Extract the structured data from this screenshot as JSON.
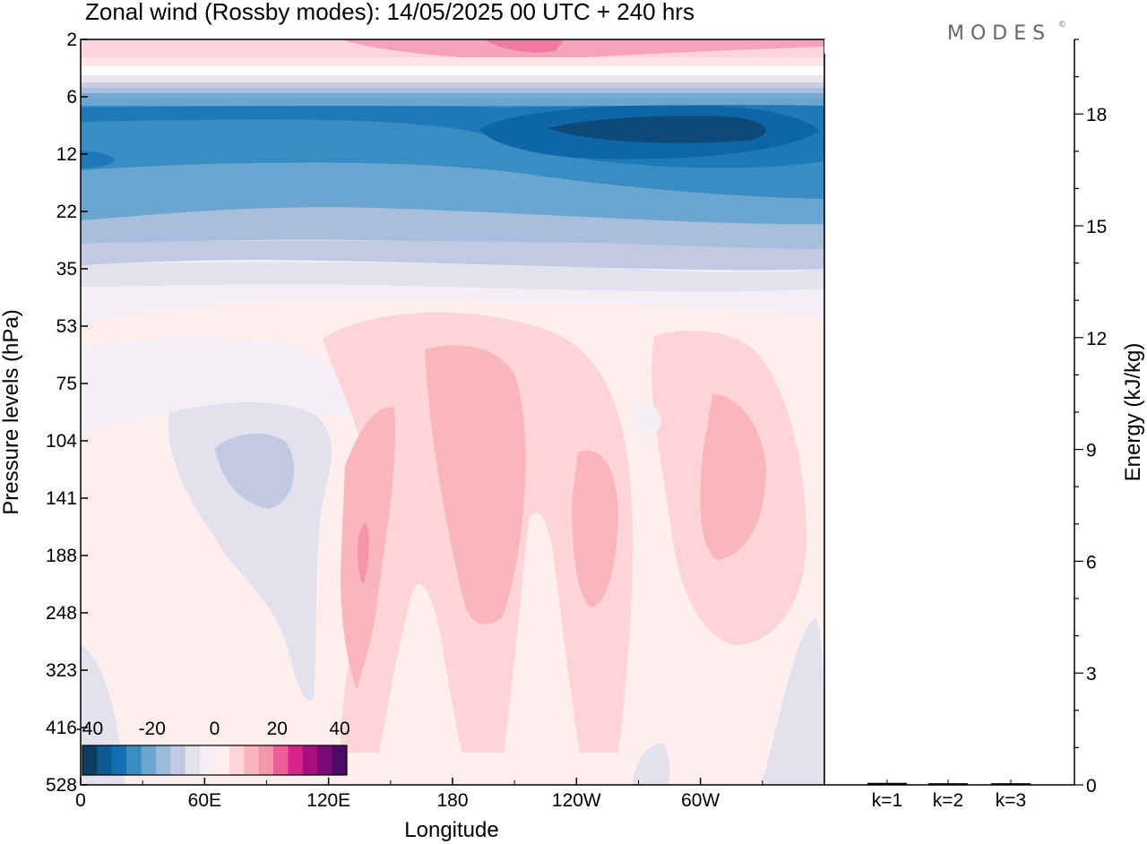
{
  "title": "Zonal wind (Rossby modes):  14/05/2025  00 UTC  + 240 hrs",
  "logo": {
    "text": "MODES",
    "mark": "©"
  },
  "chart_data": [
    {
      "type": "heatmap",
      "title": "Zonal wind (Rossby modes):  14/05/2025  00 UTC  + 240 hrs",
      "xlabel": "Longitude",
      "ylabel": "Pressure levels (hPa)",
      "x_ticks": [
        "0",
        "60E",
        "120E",
        "180",
        "120W",
        "60W"
      ],
      "x_range": [
        0,
        360
      ],
      "y_ticks": [
        "2",
        "6",
        "12",
        "22",
        "35",
        "53",
        "75",
        "104",
        "141",
        "188",
        "248",
        "323",
        "416",
        "528"
      ],
      "y_scale": "log (pressure)",
      "y_direction": "pressure decreasing upward",
      "colorbar": {
        "labels": [
          "-40",
          "-20",
          "0",
          "20",
          "40"
        ],
        "range": [
          -40,
          40
        ],
        "step": 5,
        "colors": [
          "#0d3c61",
          "#0e5a92",
          "#1070b2",
          "#3a8dc3",
          "#6aa6cf",
          "#9bbbdb",
          "#c2c9e2",
          "#e2e1ee",
          "#f3eff5",
          "#ffeeee",
          "#fdd5d6",
          "#fab6bd",
          "#f595ab",
          "#ee5e9a",
          "#d6238a",
          "#a80e7e",
          "#7a0a76",
          "#4f0a63"
        ]
      },
      "field_features": [
        {
          "description": "strong easterly core",
          "lon_range": [
            190,
            320
          ],
          "level_hPa": 9,
          "value": -40
        },
        {
          "description": "easterly band",
          "lon_range": [
            0,
            360
          ],
          "level_range_hPa": [
            6,
            30
          ],
          "value_range": [
            -35,
            -15
          ]
        },
        {
          "description": "weak westerly near top",
          "lon_range": [
            0,
            360
          ],
          "level_range_hPa": [
            2,
            4
          ],
          "value_range": [
            5,
            15
          ]
        },
        {
          "description": "westerly tongue",
          "lon_range": [
            130,
            150
          ],
          "level_range_hPa": [
            100,
            320
          ],
          "value": 10
        },
        {
          "description": "westerly maximum",
          "lon_range": [
            165,
            205
          ],
          "level_range_hPa": [
            70,
            250
          ],
          "value": 15
        },
        {
          "description": "westerly maximum",
          "lon_range": [
            225,
            250
          ],
          "level_range_hPa": [
            100,
            240
          ],
          "value": 15
        },
        {
          "description": "westerly maximum",
          "lon_range": [
            280,
            305
          ],
          "level_range_hPa": [
            90,
            230
          ],
          "value": 15
        },
        {
          "description": "weak easterly pocket",
          "lon_range": [
            60,
            105
          ],
          "level_range_hPa": [
            90,
            330
          ],
          "value": -5
        }
      ]
    },
    {
      "type": "bar",
      "ylabel": "Energy (kJ/kg)",
      "categories": [
        "k=1",
        "k=2",
        "k=3"
      ],
      "values": [
        0.03,
        0.02,
        0.02
      ],
      "ylim": [
        0,
        20
      ],
      "y_ticks": [
        0,
        3,
        6,
        9,
        12,
        15,
        18
      ]
    }
  ]
}
